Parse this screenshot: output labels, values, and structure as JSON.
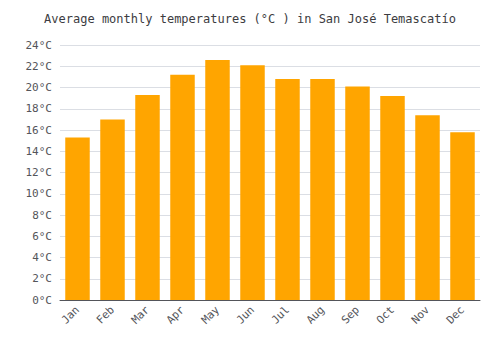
{
  "chart_data": {
    "type": "bar",
    "title": "Average monthly temperatures (°C ) in San José Temascatío",
    "categories": [
      "Jan",
      "Feb",
      "Mar",
      "Apr",
      "May",
      "Jun",
      "Jul",
      "Aug",
      "Sep",
      "Oct",
      "Nov",
      "Dec"
    ],
    "values": [
      15.3,
      17.0,
      19.3,
      21.2,
      22.6,
      22.1,
      20.8,
      20.8,
      20.1,
      19.2,
      17.4,
      15.8
    ],
    "color": "#FFA500",
    "ylim": [
      0,
      24
    ],
    "yticks": [
      {
        "value": 0,
        "label": "0°C"
      },
      {
        "value": 2,
        "label": "2°C"
      },
      {
        "value": 4,
        "label": "4°C"
      },
      {
        "value": 6,
        "label": "6°C"
      },
      {
        "value": 8,
        "label": "8°C"
      },
      {
        "value": 10,
        "label": "10°C"
      },
      {
        "value": 12,
        "label": "12°C"
      },
      {
        "value": 14,
        "label": "14°C"
      },
      {
        "value": 16,
        "label": "16°C"
      },
      {
        "value": 18,
        "label": "18°C"
      },
      {
        "value": 20,
        "label": "20°C"
      },
      {
        "value": 22,
        "label": "22°C"
      },
      {
        "value": 24,
        "label": "24°C"
      }
    ],
    "grid": true
  }
}
